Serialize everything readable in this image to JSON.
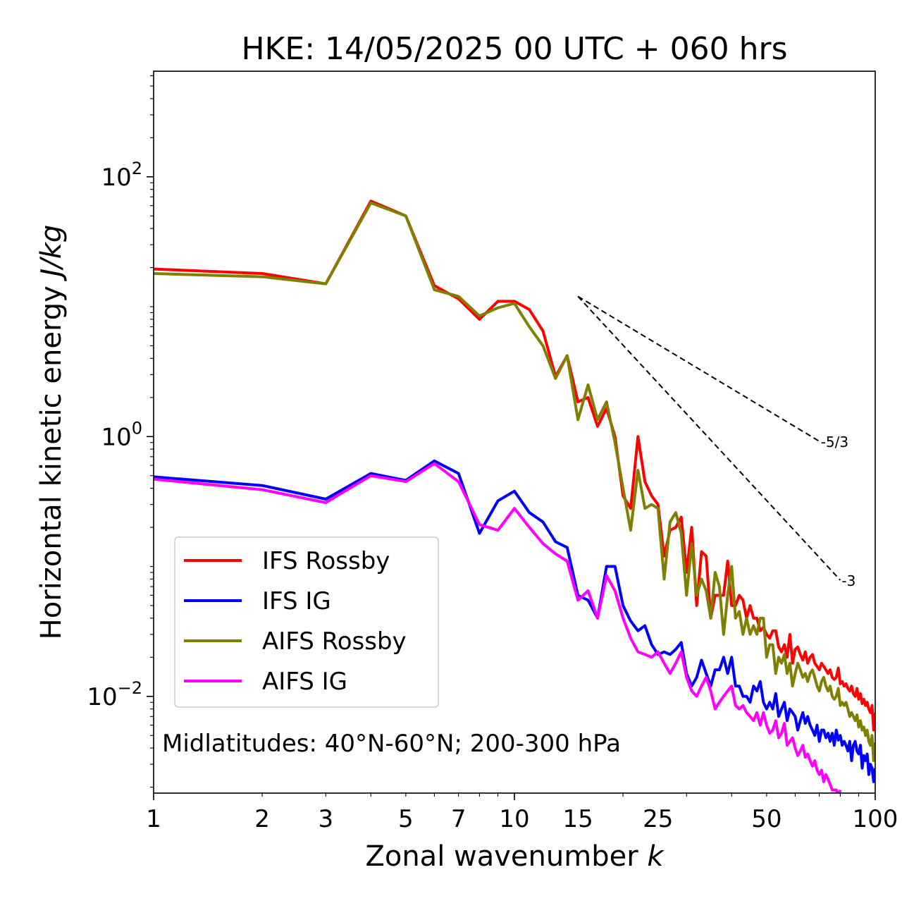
{
  "chart_data": {
    "type": "line",
    "title": "HKE: 14/05/2025 00 UTC + 060 hrs",
    "xlabel": "Zonal wavenumber",
    "xlabel_var": "k",
    "ylabel": "Horizontal kinetic energy",
    "ylabel_unit": "J/kg",
    "xscale": "log",
    "yscale": "log",
    "xlim": [
      1,
      100
    ],
    "ylim": [
      0.0018,
      650
    ],
    "x_ticks": [
      1,
      2,
      3,
      5,
      7,
      10,
      15,
      25,
      50,
      100
    ],
    "x_tick_labels": [
      "1",
      "2",
      "3",
      "5",
      "7",
      "10",
      "15",
      "25",
      "50",
      "100"
    ],
    "y_ticks": [
      0.01,
      1,
      100
    ],
    "y_tick_labels": [
      {
        "base": "10",
        "exp": "−2"
      },
      {
        "base": "10",
        "exp": "0"
      },
      {
        "base": "10",
        "exp": "2"
      }
    ],
    "grid": false,
    "legend_position": "lower-left",
    "annotation": "Midlatitudes: 40°N-60°N; 200-300 hPa",
    "reference_slopes": [
      {
        "label": "-5/3",
        "x": [
          15,
          70
        ],
        "y": [
          12.0,
          0.92
        ]
      },
      {
        "label": "-3",
        "x": [
          15,
          80
        ],
        "y": [
          12.0,
          0.0785
        ]
      }
    ],
    "series": [
      {
        "name": "IFS Rossby",
        "color": "#ff0000",
        "x": [
          1,
          2,
          3,
          4,
          5,
          6,
          7,
          8,
          9,
          10,
          11,
          12,
          13,
          14,
          15,
          16,
          17,
          18,
          19,
          20,
          21,
          22,
          23,
          24,
          25,
          26,
          27,
          28,
          29,
          30,
          31,
          32,
          33,
          34,
          35,
          36,
          37,
          38,
          39,
          40,
          41,
          42,
          43,
          44,
          45,
          46,
          47,
          48,
          49,
          50,
          51,
          52,
          53,
          54,
          55,
          56,
          57,
          58,
          59,
          60,
          61,
          62,
          63,
          64,
          65,
          66,
          67,
          68,
          69,
          70,
          71,
          72,
          73,
          74,
          75,
          76,
          77,
          78,
          79,
          80,
          81,
          82,
          83,
          84,
          85,
          86,
          87,
          88,
          89,
          90,
          91,
          92,
          93,
          94,
          95,
          96,
          97,
          98,
          99,
          100
        ],
        "y": [
          19.5,
          18.0,
          15.0,
          65,
          50,
          14.5,
          11.5,
          8.0,
          11.0,
          11.0,
          9.5,
          6.5,
          2.9,
          4.2,
          1.85,
          2.0,
          1.2,
          1.65,
          1.0,
          0.35,
          0.28,
          1.0,
          0.45,
          0.35,
          0.3,
          0.12,
          0.19,
          0.2,
          0.24,
          0.09,
          0.2,
          0.05,
          0.13,
          0.12,
          0.04,
          0.06,
          0.06,
          0.06,
          0.11,
          0.05,
          0.05,
          0.06,
          0.055,
          0.04,
          0.05,
          0.04,
          0.04,
          0.032,
          0.034,
          0.03,
          0.028,
          0.032,
          0.032,
          0.024,
          0.022,
          0.025,
          0.02,
          0.03,
          0.018,
          0.023,
          0.024,
          0.021,
          0.019,
          0.022,
          0.018,
          0.02,
          0.021,
          0.018,
          0.017,
          0.016,
          0.018,
          0.017,
          0.016,
          0.015,
          0.016,
          0.014,
          0.0135,
          0.014,
          0.0165,
          0.0125,
          0.013,
          0.012,
          0.0125,
          0.0115,
          0.011,
          0.012,
          0.0105,
          0.01,
          0.0115,
          0.0095,
          0.0105,
          0.0088,
          0.0095,
          0.0085,
          0.009,
          0.008,
          0.0075,
          0.0085,
          0.0055,
          0.0075
        ]
      },
      {
        "name": "IFS IG",
        "color": "#0000ff",
        "x": [
          1,
          2,
          3,
          4,
          5,
          6,
          7,
          8,
          9,
          10,
          11,
          12,
          13,
          14,
          15,
          16,
          17,
          18,
          19,
          20,
          21,
          22,
          23,
          24,
          25,
          26,
          27,
          28,
          29,
          30,
          31,
          32,
          33,
          34,
          35,
          36,
          37,
          38,
          39,
          40,
          41,
          42,
          43,
          44,
          45,
          46,
          47,
          48,
          49,
          50,
          51,
          52,
          53,
          54,
          55,
          56,
          57,
          58,
          59,
          60,
          61,
          62,
          63,
          64,
          65,
          66,
          67,
          68,
          69,
          70,
          71,
          72,
          73,
          74,
          75,
          76,
          77,
          78,
          79,
          80,
          81,
          82,
          83,
          84,
          85,
          86,
          87,
          88,
          89,
          90,
          91,
          92,
          93,
          94,
          95,
          96,
          97,
          98,
          99,
          100
        ],
        "y": [
          0.49,
          0.42,
          0.33,
          0.52,
          0.46,
          0.65,
          0.52,
          0.18,
          0.32,
          0.38,
          0.26,
          0.22,
          0.155,
          0.14,
          0.06,
          0.055,
          0.04,
          0.1,
          0.1,
          0.05,
          0.038,
          0.032,
          0.035,
          0.025,
          0.021,
          0.022,
          0.021,
          0.023,
          0.026,
          0.015,
          0.012,
          0.014,
          0.019,
          0.015,
          0.012,
          0.016,
          0.016,
          0.02,
          0.015,
          0.02,
          0.012,
          0.012,
          0.01,
          0.01,
          0.009,
          0.012,
          0.011,
          0.013,
          0.009,
          0.008,
          0.009,
          0.008,
          0.0105,
          0.007,
          0.008,
          0.009,
          0.0065,
          0.008,
          0.0075,
          0.007,
          0.0055,
          0.0065,
          0.0075,
          0.0062,
          0.007,
          0.006,
          0.0055,
          0.005,
          0.006,
          0.0045,
          0.0055,
          0.0055,
          0.0048,
          0.0052,
          0.0045,
          0.0052,
          0.0042,
          0.0055,
          0.0046,
          0.005,
          0.0042,
          0.0045,
          0.0042,
          0.0038,
          0.0045,
          0.0032,
          0.0042,
          0.0045,
          0.0038,
          0.0036,
          0.0042,
          0.0028,
          0.0035,
          0.0032,
          0.0036,
          0.0025,
          0.003,
          0.0028,
          0.0022,
          0.0028
        ]
      },
      {
        "name": "AIFS Rossby",
        "color": "#808000",
        "x": [
          1,
          2,
          3,
          4,
          5,
          6,
          7,
          8,
          9,
          10,
          11,
          12,
          13,
          14,
          15,
          16,
          17,
          18,
          19,
          20,
          21,
          22,
          23,
          24,
          25,
          26,
          27,
          28,
          29,
          30,
          31,
          32,
          33,
          34,
          35,
          36,
          37,
          38,
          39,
          40,
          41,
          42,
          43,
          44,
          45,
          46,
          47,
          48,
          49,
          50,
          51,
          52,
          53,
          54,
          55,
          56,
          57,
          58,
          59,
          60,
          61,
          62,
          63,
          64,
          65,
          66,
          67,
          68,
          69,
          70,
          71,
          72,
          73,
          74,
          75,
          76,
          77,
          78,
          79,
          80,
          81,
          82,
          83,
          84,
          85,
          86,
          87,
          88,
          89,
          90,
          91,
          92,
          93,
          94,
          95,
          96,
          97,
          98,
          99,
          100
        ],
        "y": [
          18.0,
          17.0,
          15.0,
          63,
          50,
          13.5,
          12.0,
          8.5,
          9.8,
          10.6,
          7.0,
          5.0,
          2.8,
          4.2,
          1.35,
          2.5,
          1.35,
          1.85,
          0.9,
          0.4,
          0.19,
          0.55,
          0.28,
          0.3,
          0.28,
          0.08,
          0.22,
          0.26,
          0.18,
          0.06,
          0.15,
          0.06,
          0.08,
          0.065,
          0.04,
          0.09,
          0.07,
          0.03,
          0.06,
          0.1,
          0.04,
          0.045,
          0.03,
          0.04,
          0.03,
          0.035,
          0.03,
          0.04,
          0.04,
          0.02,
          0.025,
          0.025,
          0.015,
          0.02,
          0.018,
          0.021,
          0.015,
          0.018,
          0.012,
          0.015,
          0.018,
          0.016,
          0.014,
          0.015,
          0.013,
          0.015,
          0.016,
          0.014,
          0.012,
          0.011,
          0.013,
          0.014,
          0.012,
          0.011,
          0.012,
          0.01,
          0.0095,
          0.01,
          0.0115,
          0.0085,
          0.009,
          0.0085,
          0.009,
          0.008,
          0.007,
          0.0075,
          0.007,
          0.0065,
          0.0072,
          0.0058,
          0.0065,
          0.0055,
          0.0058,
          0.005,
          0.0055,
          0.0045,
          0.0042,
          0.005,
          0.0032,
          0.0044
        ]
      },
      {
        "name": "AIFS IG",
        "color": "#ff00ff",
        "x": [
          1,
          2,
          3,
          4,
          5,
          6,
          7,
          8,
          9,
          10,
          11,
          12,
          13,
          14,
          15,
          16,
          17,
          18,
          19,
          20,
          21,
          22,
          23,
          24,
          25,
          26,
          27,
          28,
          29,
          30,
          31,
          32,
          33,
          34,
          35,
          36,
          37,
          38,
          39,
          40,
          41,
          42,
          43,
          44,
          45,
          46,
          47,
          48,
          49,
          50,
          51,
          52,
          53,
          54,
          55,
          56,
          57,
          58,
          59,
          60,
          61,
          62,
          63,
          64,
          65,
          66,
          67,
          68,
          69,
          70,
          71,
          72,
          73,
          74,
          75,
          76,
          77,
          78,
          79,
          80
        ],
        "y": [
          0.47,
          0.39,
          0.31,
          0.5,
          0.45,
          0.62,
          0.45,
          0.21,
          0.19,
          0.28,
          0.2,
          0.15,
          0.125,
          0.11,
          0.055,
          0.065,
          0.04,
          0.085,
          0.065,
          0.04,
          0.028,
          0.022,
          0.021,
          0.02,
          0.022,
          0.018,
          0.015,
          0.018,
          0.022,
          0.014,
          0.011,
          0.01,
          0.012,
          0.014,
          0.011,
          0.008,
          0.009,
          0.01,
          0.011,
          0.012,
          0.0085,
          0.008,
          0.0085,
          0.0075,
          0.007,
          0.0065,
          0.0075,
          0.006,
          0.0075,
          0.006,
          0.0052,
          0.0055,
          0.0065,
          0.0048,
          0.0052,
          0.0062,
          0.0042,
          0.0045,
          0.0048,
          0.004,
          0.0035,
          0.0038,
          0.0042,
          0.0034,
          0.0036,
          0.0032,
          0.0029,
          0.0032,
          0.0027,
          0.0025,
          0.0027,
          0.0022,
          0.0025,
          0.0023,
          0.0021,
          0.0019,
          0.0019,
          0.0019,
          0.0017,
          0.0019
        ]
      }
    ]
  }
}
